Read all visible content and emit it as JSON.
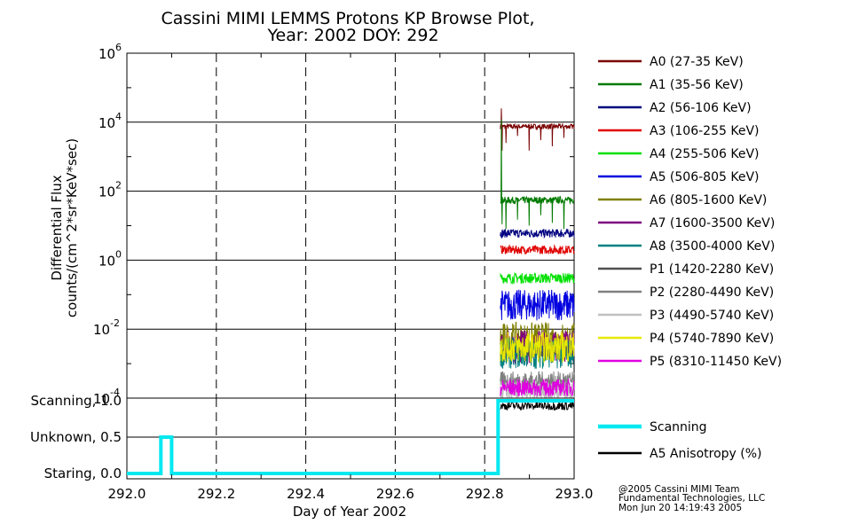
{
  "chart_data": [
    {
      "type": "line",
      "title": "Cassini MIMI LEMMS Protons KP Browse Plot,",
      "subtitle": "Year: 2002 DOY: 292",
      "ylabel": "Differential Flux",
      "ylabel2": "counts/(cm^2*sr*KeV*sec)",
      "yscale": "log",
      "ylim": [
        0.0001,
        1000000
      ],
      "xlim": [
        292.0,
        293.0
      ],
      "y_ticks": [
        {
          "base": "10",
          "exp": "6"
        },
        {
          "base": "10",
          "exp": "4"
        },
        {
          "base": "10",
          "exp": "2"
        },
        {
          "base": "10",
          "exp": "0"
        },
        {
          "base": "10",
          "exp": "-2"
        },
        {
          "base": "10",
          "exp": "-4"
        }
      ],
      "grid": true,
      "legend_position": "right",
      "data_starts_at": 292.835,
      "series": [
        {
          "name": "A0 (27-35 KeV)",
          "color": "#7a0000",
          "level": 7500,
          "spread": 0.15,
          "spike": 25000,
          "dips": [
            2500,
            4000,
            1500,
            3000,
            2000,
            3500
          ]
        },
        {
          "name": "A1 (35-56 KeV)",
          "color": "#007a00",
          "level": 55,
          "spread": 0.2,
          "spike": 12000,
          "dips": [
            8,
            15,
            10,
            20,
            12
          ]
        },
        {
          "name": "A2 (56-106 KeV)",
          "color": "#000080",
          "level": 6,
          "spread": 0.25
        },
        {
          "name": "A3 (106-255 KeV)",
          "color": "#e00000",
          "level": 2,
          "spread": 0.25
        },
        {
          "name": "A4 (255-506 KeV)",
          "color": "#00e000",
          "level": 0.3,
          "spread": 0.3
        },
        {
          "name": "A5 (506-805 KeV)",
          "color": "#0000e0",
          "level": 0.05,
          "spread": 0.9
        },
        {
          "name": "A6 (805-1600 KeV)",
          "color": "#808000",
          "level": 0.005,
          "spread": 1.0
        },
        {
          "name": "A7 (1600-3500 KeV)",
          "color": "#800080",
          "level": 0.003,
          "spread": 1.0
        },
        {
          "name": "A8 (3500-4000 KeV)",
          "color": "#008080",
          "level": 0.002,
          "spread": 0.9
        },
        {
          "name": "P1 (1420-2280 KeV)",
          "color": "#505050",
          "level": 0.0025,
          "spread": 0.4
        },
        {
          "name": "P2 (2280-4490 KeV)",
          "color": "#808080",
          "level": 0.0003,
          "spread": 0.6
        },
        {
          "name": "P3 (4490-5740 KeV)",
          "color": "#c0c0c0",
          "level": 0.00015,
          "spread": 0.6
        },
        {
          "name": "P4 (5740-7890 KeV)",
          "color": "#e8e800",
          "level": 0.003,
          "spread": 0.9
        },
        {
          "name": "P5 (8310-11450 KeV)",
          "color": "#e000e0",
          "level": 0.0002,
          "spread": 0.5
        }
      ]
    },
    {
      "type": "line",
      "xlabel": "Day of Year 2002",
      "x_ticks": [
        "292.0",
        "292.2",
        "292.4",
        "292.6",
        "292.8",
        "293.0"
      ],
      "xlim": [
        292.0,
        293.0
      ],
      "y_ticks": [
        "Scanning, 1.0",
        "Unknown, 0.5",
        "Staring, 0.0"
      ],
      "ylim": [
        0.0,
        1.0
      ],
      "grid": true,
      "series": [
        {
          "name": "Scanning",
          "color": "#00e8f0",
          "points": [
            [
              292.0,
              0.0
            ],
            [
              292.076,
              0.0
            ],
            [
              292.076,
              0.5
            ],
            [
              292.1,
              0.5
            ],
            [
              292.1,
              0.0
            ],
            [
              292.83,
              0.0
            ],
            [
              292.83,
              1.0
            ],
            [
              293.0,
              1.0
            ]
          ]
        },
        {
          "name": "A5 Anisotropy (%)",
          "color": "#000000",
          "level": 0.93,
          "spread": 0.06,
          "starts_at": 292.835
        }
      ]
    }
  ],
  "footer": {
    "line1": "@2005 Cassini MIMI Team",
    "line2": "Fundamental Technologies, LLC",
    "line3": "Mon Jun 20 14:19:43 2005"
  }
}
